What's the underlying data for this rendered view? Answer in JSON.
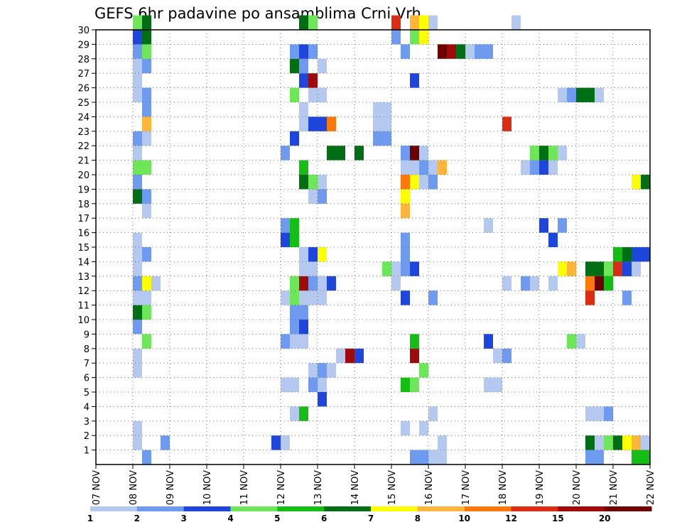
{
  "chart_data": {
    "type": "heatmap",
    "title": "GEFS 6hr padavine po ansamblima Crni Vrh",
    "xlabel": "",
    "ylabel": "",
    "x_ticks": [
      "07 NOV",
      "08 NOV",
      "09 NOV",
      "10 NOV",
      "11 NOV",
      "12 NOV",
      "13 NOV",
      "14 NOV",
      "15 NOV",
      "16 NOV",
      "17 NOV",
      "18 NOV",
      "19 NOV",
      "20 NOV",
      "21 NOV",
      "22 NOV"
    ],
    "y_ticks": [
      "1",
      "2",
      "3",
      "4",
      "5",
      "6",
      "7",
      "8",
      "9",
      "10",
      "11",
      "12",
      "13",
      "14",
      "15",
      "16",
      "17",
      "18",
      "19",
      "20",
      "21",
      "22",
      "23",
      "24",
      "25",
      "26",
      "27",
      "28",
      "29",
      "30"
    ],
    "xlim_days": [
      0,
      15
    ],
    "ylim": [
      0,
      30
    ],
    "grid": true,
    "steps_per_day": 4,
    "legend": {
      "placement": "bottom",
      "labels": [
        "1",
        "2",
        "3",
        "4",
        "5",
        "6",
        "7",
        "8",
        "10",
        "12",
        "15",
        "20"
      ],
      "colors": [
        "#b4c8f0",
        "#6e9bf0",
        "#1e46dc",
        "#6ee65a",
        "#14be14",
        "#006e14",
        "#ffff00",
        "#ffb43c",
        "#ff780a",
        "#dc2d14",
        "#a00a0a",
        "#6e0000"
      ]
    },
    "cells": [
      [
        3.5,
        1,
        1
      ],
      [
        3.75,
        0,
        2
      ],
      [
        4.25,
        1,
        2
      ],
      [
        3.5,
        2,
        1
      ],
      [
        3.5,
        6,
        1
      ],
      [
        3.5,
        7,
        1
      ],
      [
        3.75,
        8,
        4
      ],
      [
        3.5,
        9,
        2
      ],
      [
        3.5,
        10,
        6
      ],
      [
        3.75,
        10,
        4
      ],
      [
        3.5,
        11,
        1
      ],
      [
        3.75,
        11,
        1
      ],
      [
        3.5,
        12,
        2
      ],
      [
        3.75,
        12,
        7
      ],
      [
        4.0,
        12,
        1
      ],
      [
        3.5,
        13,
        1
      ],
      [
        3.5,
        14,
        1
      ],
      [
        3.75,
        14,
        2
      ],
      [
        3.5,
        15,
        1
      ],
      [
        3.75,
        17,
        1
      ],
      [
        3.5,
        18,
        6
      ],
      [
        3.75,
        18,
        2
      ],
      [
        3.5,
        19,
        2
      ],
      [
        3.5,
        20,
        4
      ],
      [
        3.75,
        20,
        4
      ],
      [
        3.5,
        21,
        1
      ],
      [
        3.5,
        22,
        2
      ],
      [
        3.75,
        22,
        1
      ],
      [
        3.75,
        23,
        8
      ],
      [
        3.75,
        24,
        2
      ],
      [
        3.5,
        25,
        1
      ],
      [
        3.75,
        25,
        2
      ],
      [
        3.5,
        26,
        1
      ],
      [
        3.5,
        27,
        1
      ],
      [
        3.75,
        27,
        2
      ],
      [
        3.5,
        28,
        2
      ],
      [
        3.75,
        28,
        4
      ],
      [
        3.5,
        29,
        3
      ],
      [
        3.75,
        29,
        6
      ],
      [
        3.5,
        30,
        4
      ],
      [
        3.75,
        30,
        6
      ],
      [
        7.25,
        1,
        3
      ],
      [
        7.5,
        1,
        1
      ],
      [
        7.5,
        5,
        1
      ],
      [
        7.75,
        5,
        1
      ],
      [
        8.25,
        5,
        2
      ],
      [
        8.5,
        5,
        1
      ],
      [
        8.25,
        6,
        1
      ],
      [
        8.5,
        6,
        2
      ],
      [
        8.75,
        6,
        1
      ],
      [
        8.5,
        4,
        3
      ],
      [
        7.75,
        3,
        1
      ],
      [
        8.0,
        3,
        5
      ],
      [
        7.5,
        8,
        2
      ],
      [
        7.75,
        8,
        1
      ],
      [
        8.0,
        8,
        1
      ],
      [
        7.75,
        9,
        2
      ],
      [
        8.0,
        9,
        3
      ],
      [
        7.75,
        10,
        2
      ],
      [
        8.0,
        10,
        2
      ],
      [
        7.5,
        11,
        1
      ],
      [
        7.75,
        11,
        4
      ],
      [
        8.0,
        11,
        1
      ],
      [
        8.25,
        11,
        1
      ],
      [
        8.5,
        11,
        1
      ],
      [
        7.75,
        12,
        4
      ],
      [
        8.0,
        12,
        11
      ],
      [
        8.25,
        12,
        2
      ],
      [
        8.5,
        12,
        1
      ],
      [
        8.75,
        12,
        3
      ],
      [
        8.0,
        13,
        1
      ],
      [
        8.25,
        13,
        1
      ],
      [
        8.0,
        14,
        1
      ],
      [
        8.25,
        14,
        3
      ],
      [
        8.5,
        14,
        7
      ],
      [
        7.5,
        15,
        3
      ],
      [
        7.75,
        15,
        5
      ],
      [
        7.5,
        16,
        2
      ],
      [
        7.75,
        16,
        5
      ],
      [
        8.25,
        18,
        1
      ],
      [
        8.5,
        18,
        2
      ],
      [
        8.0,
        19,
        6
      ],
      [
        8.25,
        19,
        4
      ],
      [
        8.5,
        19,
        1
      ],
      [
        8.0,
        20,
        5
      ],
      [
        7.5,
        21,
        2
      ],
      [
        8.75,
        21,
        6
      ],
      [
        9.0,
        21,
        6
      ],
      [
        9.5,
        21,
        6
      ],
      [
        7.75,
        22,
        3
      ],
      [
        8.0,
        23,
        1
      ],
      [
        8.25,
        23,
        3
      ],
      [
        8.5,
        23,
        3
      ],
      [
        8.75,
        23,
        9
      ],
      [
        8.0,
        24,
        1
      ],
      [
        7.75,
        25,
        4
      ],
      [
        8.25,
        25,
        1
      ],
      [
        8.5,
        25,
        1
      ],
      [
        8.0,
        26,
        3
      ],
      [
        8.25,
        26,
        11
      ],
      [
        7.75,
        27,
        6
      ],
      [
        8.0,
        27,
        2
      ],
      [
        8.5,
        27,
        1
      ],
      [
        7.75,
        28,
        2
      ],
      [
        8.0,
        28,
        3
      ],
      [
        8.25,
        28,
        2
      ],
      [
        8.0,
        30,
        6
      ],
      [
        8.25,
        30,
        4
      ],
      [
        9.0,
        7,
        1
      ],
      [
        9.25,
        7,
        11
      ],
      [
        9.5,
        7,
        3
      ],
      [
        10.0,
        22,
        2
      ],
      [
        10.25,
        22,
        2
      ],
      [
        10.0,
        24,
        1
      ],
      [
        10.25,
        24,
        1
      ],
      [
        10.25,
        23,
        1
      ],
      [
        10.0,
        23,
        1
      ],
      [
        10.25,
        13,
        4
      ],
      [
        10.5,
        13,
        1
      ],
      [
        10.75,
        13,
        2
      ],
      [
        11.0,
        13,
        3
      ],
      [
        10.75,
        14,
        2
      ],
      [
        10.75,
        15,
        2
      ],
      [
        10.75,
        5,
        5
      ],
      [
        11.0,
        5,
        4
      ],
      [
        10.75,
        11,
        3
      ],
      [
        10.5,
        12,
        1
      ],
      [
        11.0,
        7,
        11
      ],
      [
        11.25,
        6,
        4
      ],
      [
        11.0,
        8,
        5
      ],
      [
        10.75,
        2,
        1
      ],
      [
        11.25,
        2,
        1
      ],
      [
        10.75,
        17,
        8
      ],
      [
        10.75,
        18,
        7
      ],
      [
        10.75,
        19,
        9
      ],
      [
        11.0,
        19,
        7
      ],
      [
        11.25,
        19,
        1
      ],
      [
        10.75,
        20,
        1
      ],
      [
        11.0,
        20,
        1
      ],
      [
        11.25,
        20,
        2
      ],
      [
        11.5,
        20,
        1
      ],
      [
        11.75,
        20,
        8
      ],
      [
        11.5,
        19,
        2
      ],
      [
        11.0,
        21,
        3
      ],
      [
        10.75,
        21,
        2
      ],
      [
        11.0,
        21,
        12
      ],
      [
        11.25,
        21,
        1
      ],
      [
        10.75,
        28,
        2
      ],
      [
        11.0,
        29,
        4
      ],
      [
        11.25,
        29,
        7
      ],
      [
        11.0,
        30,
        8
      ],
      [
        11.25,
        30,
        7
      ],
      [
        11.5,
        30,
        1
      ],
      [
        10.5,
        29,
        2
      ],
      [
        10.5,
        30,
        10
      ],
      [
        11.0,
        26,
        3
      ],
      [
        11.75,
        28,
        12
      ],
      [
        12.0,
        28,
        11
      ],
      [
        12.25,
        28,
        6
      ],
      [
        12.5,
        28,
        1
      ],
      [
        12.75,
        28,
        2
      ],
      [
        13.0,
        28,
        2
      ],
      [
        11.5,
        11,
        2
      ],
      [
        11.5,
        3,
        1
      ],
      [
        11.5,
        0,
        1
      ],
      [
        11.75,
        0,
        1
      ],
      [
        11.0,
        0,
        2
      ],
      [
        11.25,
        0,
        2
      ],
      [
        11.75,
        1,
        1
      ],
      [
        13.0,
        8,
        3
      ],
      [
        13.25,
        7,
        1
      ],
      [
        13.5,
        7,
        2
      ],
      [
        13.25,
        5,
        1
      ],
      [
        13.0,
        5,
        1
      ],
      [
        13.0,
        16,
        1
      ],
      [
        13.0,
        8,
        3
      ],
      [
        13.5,
        12,
        1
      ],
      [
        13.75,
        30,
        1
      ],
      [
        13.5,
        23,
        10
      ],
      [
        14.25,
        21,
        4
      ],
      [
        14.5,
        21,
        6
      ],
      [
        14.75,
        21,
        4
      ],
      [
        15.0,
        21,
        1
      ],
      [
        14.0,
        20,
        1
      ],
      [
        14.25,
        20,
        2
      ],
      [
        14.5,
        20,
        3
      ],
      [
        14.75,
        20,
        1
      ],
      [
        14.0,
        12,
        2
      ],
      [
        14.25,
        12,
        1
      ],
      [
        14.75,
        12,
        1
      ],
      [
        14.5,
        16,
        3
      ],
      [
        15.0,
        25,
        1
      ],
      [
        15.25,
        25,
        2
      ],
      [
        15.5,
        25,
        6
      ],
      [
        15.75,
        25,
        6
      ],
      [
        16.0,
        25,
        1
      ],
      [
        14.75,
        15,
        3
      ],
      [
        15.0,
        13,
        7
      ],
      [
        15.25,
        13,
        8
      ],
      [
        15.75,
        13,
        6
      ],
      [
        16.0,
        13,
        6
      ],
      [
        16.25,
        13,
        6
      ],
      [
        16.5,
        13,
        5
      ],
      [
        16.75,
        13,
        3
      ],
      [
        17.0,
        13,
        1
      ],
      [
        15.75,
        12,
        9
      ],
      [
        16.0,
        12,
        12
      ],
      [
        16.25,
        12,
        5
      ],
      [
        16.75,
        11,
        2
      ],
      [
        15.75,
        11,
        10
      ],
      [
        17.0,
        14,
        3
      ],
      [
        17.25,
        14,
        3
      ],
      [
        17.5,
        14,
        1
      ],
      [
        16.5,
        14,
        5
      ],
      [
        16.75,
        14,
        6
      ],
      [
        16.25,
        13,
        4
      ],
      [
        16.5,
        13,
        10
      ],
      [
        16.75,
        13,
        6
      ],
      [
        15.75,
        13,
        6
      ],
      [
        15.0,
        16,
        2
      ],
      [
        16.75,
        13,
        3
      ],
      [
        15.25,
        8,
        4
      ],
      [
        15.5,
        8,
        1
      ],
      [
        15.75,
        3,
        1
      ],
      [
        16.0,
        3,
        1
      ],
      [
        16.25,
        3,
        2
      ],
      [
        15.75,
        1,
        6
      ],
      [
        16.0,
        1,
        1
      ],
      [
        16.25,
        1,
        4
      ],
      [
        16.5,
        1,
        6
      ],
      [
        16.75,
        1,
        7
      ],
      [
        17.0,
        1,
        8
      ],
      [
        17.25,
        1,
        1
      ],
      [
        17.0,
        0,
        5
      ],
      [
        17.25,
        0,
        5
      ],
      [
        17.5,
        0,
        3
      ],
      [
        16.0,
        0,
        2
      ],
      [
        15.75,
        0,
        2
      ],
      [
        17.0,
        19,
        7
      ],
      [
        17.25,
        19,
        6
      ],
      [
        17.75,
        4,
        3
      ],
      [
        18.0,
        4,
        4
      ],
      [
        18.25,
        4,
        2
      ],
      [
        18.75,
        3,
        1
      ],
      [
        18.5,
        2,
        1
      ],
      [
        18.75,
        2,
        9
      ],
      [
        19.0,
        2,
        3
      ],
      [
        19.25,
        2,
        1
      ],
      [
        19.0,
        0,
        2
      ],
      [
        18.5,
        9,
        2
      ],
      [
        18.75,
        9,
        1
      ],
      [
        19.0,
        9,
        12
      ],
      [
        19.25,
        9,
        1
      ],
      [
        19.5,
        9,
        1
      ],
      [
        19.75,
        8,
        1
      ],
      [
        17.75,
        25,
        4
      ],
      [
        18.0,
        25,
        2
      ],
      [
        19.25,
        30,
        1
      ],
      [
        19.0,
        11,
        1
      ],
      [
        19.25,
        12,
        1
      ],
      [
        19.5,
        26,
        1
      ],
      [
        19.75,
        20,
        3
      ],
      [
        20.0,
        20,
        9
      ]
    ]
  }
}
